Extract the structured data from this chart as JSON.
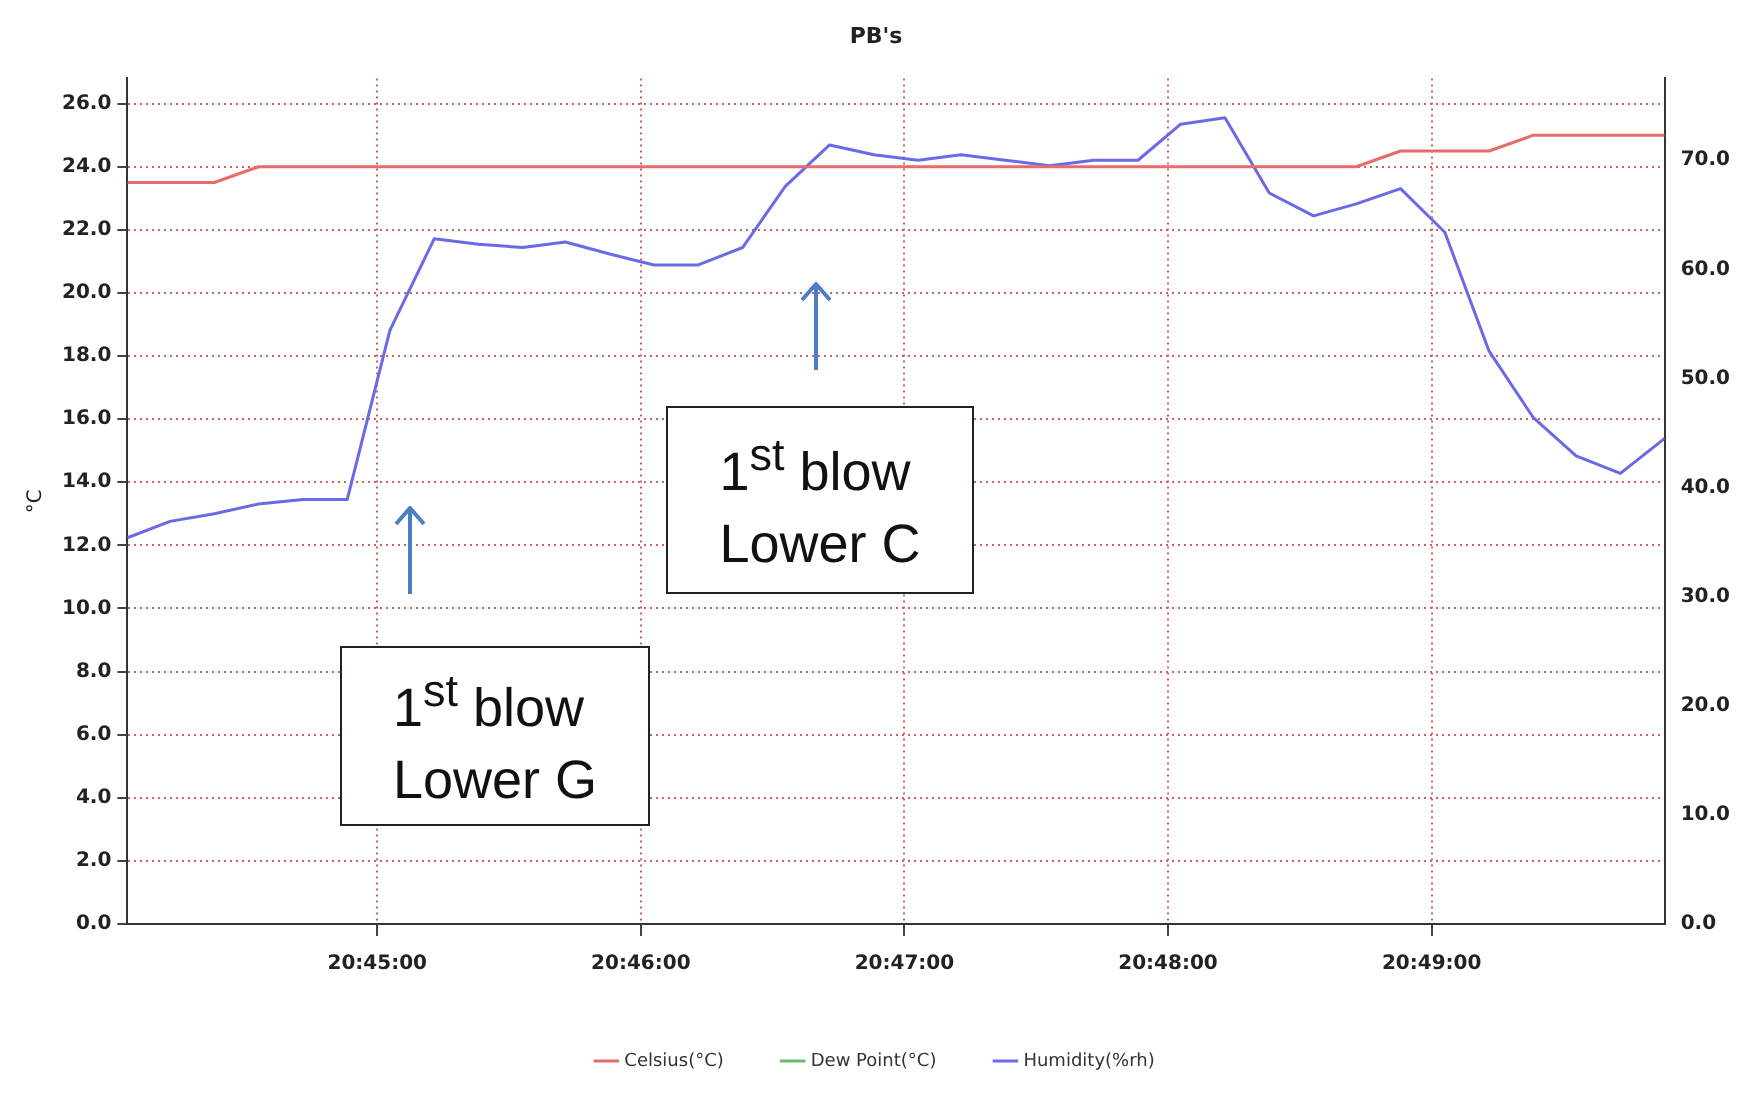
{
  "chart_data": {
    "type": "line",
    "title": "PB's",
    "ylabel": "°C",
    "x": [
      20.7342,
      20.7369,
      20.7397,
      20.7425,
      20.7453,
      20.7481,
      20.7508,
      20.7536,
      20.7564,
      20.7592,
      20.7619,
      20.7647,
      20.7675,
      20.7703,
      20.7731,
      20.7758,
      20.7786,
      20.7814,
      20.7842,
      20.7869,
      20.7897,
      20.7925,
      20.7953,
      20.7981,
      20.8008,
      20.8036,
      20.8064,
      20.8092,
      20.8119,
      20.8147,
      20.8175,
      20.8203,
      20.8231,
      20.8258,
      20.8286,
      20.8314
    ],
    "xlim": [
      20.7342,
      20.8314
    ],
    "xticks": [
      {
        "value": 20.75,
        "label": "20:45:00"
      },
      {
        "value": 20.766667,
        "label": "20:46:00"
      },
      {
        "value": 20.783333,
        "label": "20:47:00"
      },
      {
        "value": 20.8,
        "label": "20:48:00"
      },
      {
        "value": 20.816667,
        "label": "20:49:00"
      }
    ],
    "ylim": [
      0,
      26.8
    ],
    "yticks": [
      {
        "value": 0,
        "label": "0.0"
      },
      {
        "value": 2,
        "label": "2.0"
      },
      {
        "value": 4,
        "label": "4.0"
      },
      {
        "value": 6,
        "label": "6.0"
      },
      {
        "value": 8,
        "label": "8.0"
      },
      {
        "value": 10,
        "label": "10.0"
      },
      {
        "value": 12,
        "label": "12.0"
      },
      {
        "value": 14,
        "label": "14.0"
      },
      {
        "value": 16,
        "label": "16.0"
      },
      {
        "value": 18,
        "label": "18.0"
      },
      {
        "value": 20,
        "label": "20.0"
      },
      {
        "value": 22,
        "label": "22.0"
      },
      {
        "value": 24,
        "label": "24.0"
      },
      {
        "value": 26,
        "label": "26.0"
      }
    ],
    "y2lim": [
      0,
      77.5
    ],
    "y2ticks": [
      {
        "value": 0,
        "label": "0.0"
      },
      {
        "value": 10,
        "label": "10.0"
      },
      {
        "value": 20,
        "label": "20.0"
      },
      {
        "value": 30,
        "label": "30.0"
      },
      {
        "value": 40,
        "label": "40.0"
      },
      {
        "value": 50,
        "label": "50.0"
      },
      {
        "value": 60,
        "label": "60.0"
      },
      {
        "value": 70,
        "label": "70.0"
      }
    ],
    "series": [
      {
        "name": "Celsius(°C)",
        "color": "#e86b6b",
        "values": [
          23.5,
          23.5,
          23.5,
          24,
          24,
          24,
          24,
          24,
          24,
          24,
          24,
          24,
          24,
          24,
          24,
          24,
          24,
          24,
          24,
          24,
          24,
          24,
          24,
          24,
          24,
          24,
          24,
          24,
          24,
          24.5,
          24.5,
          24.5,
          25,
          25,
          25,
          25
        ]
      },
      {
        "name": "Dew Point(°C)",
        "color": "#6cb86c",
        "values": [
          null,
          null,
          null,
          null,
          null,
          null,
          null,
          null,
          null,
          null,
          null,
          null,
          null,
          null,
          null,
          null,
          null,
          null,
          null,
          null,
          null,
          null,
          null,
          null,
          null,
          null,
          null,
          null,
          null,
          null,
          null,
          null,
          null,
          null,
          null,
          null
        ]
      },
      {
        "name": "Humidity(%rh)",
        "color": "#6a6ae6",
        "axis": "y2",
        "values": [
          35.4,
          36.9,
          37.6,
          38.5,
          38.9,
          38.9,
          54.4,
          62.8,
          62.3,
          62.0,
          62.5,
          61.4,
          60.4,
          60.4,
          62.0,
          67.6,
          71.4,
          70.5,
          70.0,
          70.5,
          70.0,
          69.5,
          70.0,
          70.0,
          73.3,
          73.9,
          67.0,
          64.9,
          66.0,
          67.4,
          63.4,
          52.5,
          46.4,
          42.9,
          41.3,
          44.5
        ]
      }
    ],
    "annotations": [
      "1$^{st}$ blow\nLower G",
      "1$^{st}$ blow\nLower C"
    ],
    "grid": true,
    "legend": "bottom",
    "marker": "none",
    "line_style": "solid"
  }
}
